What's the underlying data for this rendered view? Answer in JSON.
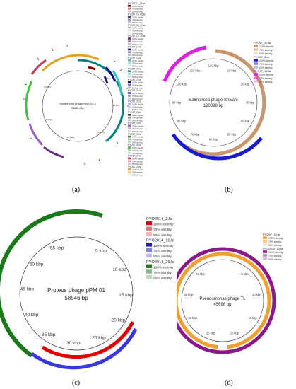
{
  "panels": {
    "a": {
      "label": "(a)",
      "center_title": "Escherichia phage PBECO 4",
      "center_size": "348114 bp",
      "ticks": [
        "50 kbp",
        "100 kbp",
        "150 kbp",
        "200 kbp",
        "250 kbp",
        "300 kbp"
      ],
      "legend": [
        {
          "file": "PYO97_11_85.fa",
          "color": "#8b0000"
        },
        {
          "file": "PYO97_15_05.fa",
          "color": "#3c3c8c"
        },
        {
          "file": "PYO97_15_22.fa",
          "color": "#c0c0c0"
        },
        {
          "file": "PYO97_16_40.fa",
          "color": "#6a2a7a"
        },
        {
          "file": "PYO97_17.fa",
          "color": "#1a1a6a"
        },
        {
          "file": "PYO97_18.fa",
          "color": "#40c0c0"
        },
        {
          "file": "PYO97_19.fa",
          "color": "#20a0a0"
        },
        {
          "file": "PYO97_20.fa",
          "color": "#00008b"
        },
        {
          "file": "PYO97_21.fa",
          "color": "#4040c0"
        },
        {
          "file": "PYO97_22.fa",
          "color": "#b0b0ff"
        },
        {
          "file": "PYO97_23.fa",
          "color": "#2a2a2a"
        },
        {
          "file": "PYO97_24.fa",
          "color": "#9a60c0"
        },
        {
          "file": "PYO97_25.fa",
          "color": "#408040"
        },
        {
          "file": "PYO97_26.fa",
          "color": "#40c040"
        },
        {
          "file": "PYO97_27.fa",
          "color": "#c04060"
        },
        {
          "file": "PYO97_28.fa",
          "color": "#e0a020"
        }
      ],
      "identity_labels": [
        "100% identity",
        "70% identity",
        "50% identity"
      ]
    },
    "b": {
      "label": "(b)",
      "center_title": "Salmonella phage Shivani",
      "center_size": "120098 bp",
      "ticks": [
        "10 kbp",
        "20 kbp",
        "30 kbp",
        "40 kbp",
        "50 kbp",
        "60 kbp",
        "70 kbp",
        "80 kbp",
        "90 kbp",
        "100 kbp",
        "110 kbp",
        "120 kbp"
      ],
      "legend": [
        {
          "file": "PYO97_22.fa",
          "color": "#c8966e"
        },
        {
          "file": "PYO97_5.fa",
          "color": "#1a1acd"
        },
        {
          "file": "PYO97_16.fa",
          "color": "#e020e0"
        }
      ],
      "identity_labels": [
        "100% identity",
        "70% identity",
        "50% identity"
      ]
    },
    "c": {
      "label": "(c)",
      "center_title": "Proteus phage pPM 01",
      "center_size": "58546 bp",
      "ticks": [
        "5 kbp",
        "10 kbp",
        "15 kbp",
        "20 kbp",
        "25 kbp",
        "30 kbp",
        "35 kbp",
        "40 kbp",
        "45 kbp",
        "50 kbp",
        "55 kbp"
      ],
      "legend": [
        {
          "file": "PYO2014_2.fa",
          "color": "#e00000"
        },
        {
          "file": "PYO2014_16.fa",
          "color": "#1a1acd"
        },
        {
          "file": "PYO2014_29.fa",
          "color": "#1a7a1a"
        }
      ],
      "identity_labels": [
        "100% identity",
        "70% identity",
        "50% identity"
      ]
    },
    "d": {
      "label": "(d)",
      "center_title": "Pseudomonas phage TL",
      "center_size": "45696 bp",
      "ticks": [
        "5 kbp",
        "10 kbp",
        "15 kbp",
        "20 kbp",
        "25 kbp",
        "30 kbp",
        "35 kbp",
        "40 kbp"
      ],
      "legend": [
        {
          "file": "PYO97_15.fa",
          "color": "#f0a030"
        },
        {
          "file": "PYO2014_13.fa",
          "color": "#8a1a8a"
        }
      ],
      "identity_labels": [
        "100% identity",
        "70% identity",
        "50% identity"
      ]
    }
  }
}
